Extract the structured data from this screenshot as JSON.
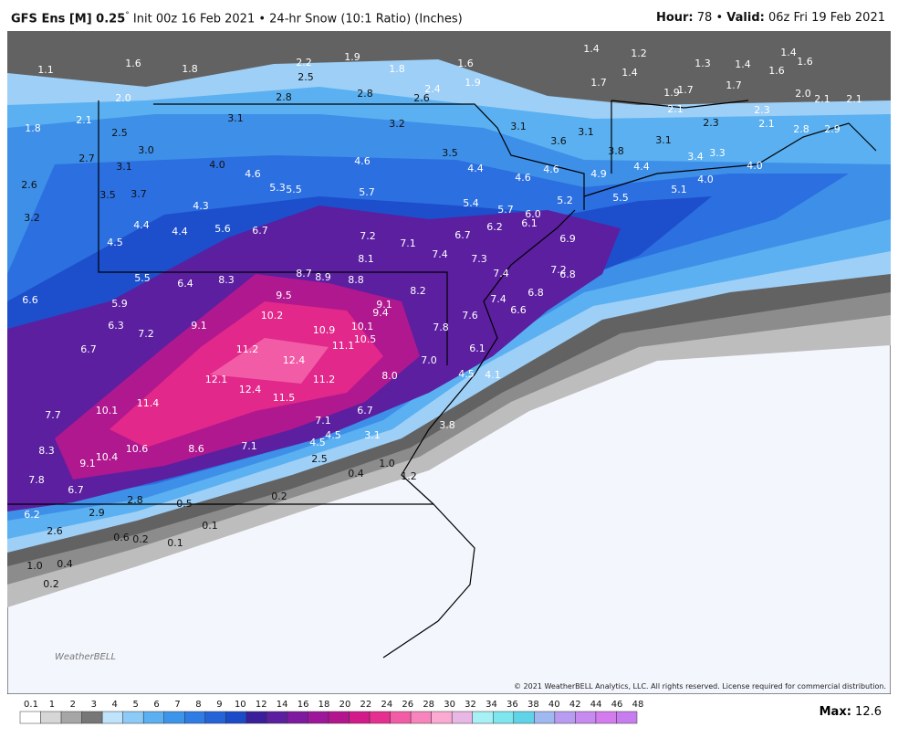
{
  "header": {
    "title": "GFS Ens [M] 0.25",
    "degree": "°",
    "subtitle": "Init 00z 16 Feb 2021 • 24-hr Snow (10:1 Ratio) (Inches)",
    "hour_label": "Hour:",
    "hour": "78",
    "sep": "•",
    "valid_label": "Valid:",
    "valid": "06z Fri 19 Feb 2021"
  },
  "map": {
    "labels": [
      "1.1",
      "1.6",
      "1.8",
      "2.2",
      "1.9",
      "1.8",
      "1.6",
      "1.4",
      "1.2",
      "1.3",
      "1.4",
      "1.4",
      "1.6",
      "1.6",
      "1.4",
      "1.7",
      "1.9",
      "2.5",
      "2.6",
      "2.4",
      "2.8",
      "2.8",
      "2.0",
      "1.9",
      "1.7",
      "1.7",
      "2.0",
      "2.1",
      "2.1",
      "2.1",
      "2.3",
      "2.3",
      "2.1",
      "2.8",
      "2.9",
      "1.8",
      "2.1",
      "2.5",
      "3.1",
      "3.2",
      "3.1",
      "3.6",
      "3.1",
      "3.1",
      "3.8",
      "3.0",
      "2.7",
      "3.1",
      "4.0",
      "4.6",
      "4.6",
      "3.5",
      "4.4",
      "4.6",
      "4.9",
      "4.4",
      "3.4",
      "3.3",
      "4.0",
      "4.0",
      "5.1",
      "2.6",
      "3.5",
      "3.7",
      "5.3",
      "5.5",
      "5.7",
      "4.6",
      "4.3",
      "5.5",
      "5.2",
      "5.4",
      "5.7",
      "6.0",
      "6.1",
      "3.2",
      "4.4",
      "4.4",
      "5.6",
      "6.7",
      "7.2",
      "7.1",
      "6.2",
      "6.7",
      "4.5",
      "6.9",
      "7.4",
      "8.1",
      "7.3",
      "5.5",
      "6.4",
      "8.3",
      "8.7",
      "8.9",
      "8.8",
      "7.4",
      "7.2",
      "6.8",
      "8.2",
      "9.5",
      "6.8",
      "7.4",
      "6.6",
      "5.9",
      "9.1",
      "9.4",
      "10.2",
      "7.6",
      "6.6",
      "6.3",
      "7.2",
      "9.1",
      "10.9",
      "10.1",
      "10.5",
      "7.8",
      "6.7",
      "11.2",
      "11.1",
      "12.4",
      "7.0",
      "6.1",
      "12.1",
      "11.2",
      "8.0",
      "4.5",
      "4.1",
      "12.4",
      "11.5",
      "11.4",
      "10.1",
      "6.7",
      "7.7",
      "7.1",
      "3.8",
      "4.5",
      "3.1",
      "4.5",
      "8.3",
      "8.6",
      "7.1",
      "10.6",
      "10.4",
      "9.1",
      "2.5",
      "1.0",
      "7.8",
      "0.4",
      "1.2",
      "6.7",
      "2.8",
      "0.2",
      "0.5",
      "2.9",
      "6.2",
      "0.1",
      "2.6",
      "0.6",
      "0.2",
      "0.1",
      "1.0",
      "0.4",
      "0.2"
    ],
    "copyright": "© 2021 WeatherBELL Analytics, LLC. All rights reserved. License required for commercial distribution.",
    "logo": "WeatherBELL"
  },
  "colorbar": {
    "ticks": [
      "0.1",
      "1",
      "2",
      "3",
      "4",
      "5",
      "6",
      "7",
      "8",
      "9",
      "10",
      "12",
      "14",
      "16",
      "18",
      "20",
      "22",
      "24",
      "26",
      "28",
      "30",
      "32",
      "34",
      "36",
      "38",
      "40",
      "42",
      "44",
      "46",
      "48"
    ],
    "colors": [
      "#ffffff",
      "#d6d6d6",
      "#a6a6a6",
      "#777777",
      "#bfe3fb",
      "#8ccaf7",
      "#5ab0f0",
      "#3d95eb",
      "#2f7ce4",
      "#2563d8",
      "#1c4bc9",
      "#3a1e9a",
      "#5b1fa0",
      "#7d1aa0",
      "#9c179a",
      "#b3158f",
      "#d21a8a",
      "#e6308f",
      "#f25ca6",
      "#f784bd",
      "#fbaad2",
      "#e9b7e6",
      "#a7f0f5",
      "#7de6ee",
      "#5fd4e8",
      "#9fb8f0",
      "#b79cf2",
      "#c78af0",
      "#d47cee",
      "#c77df0"
    ]
  },
  "max": {
    "label": "Max:",
    "value": "12.6"
  }
}
